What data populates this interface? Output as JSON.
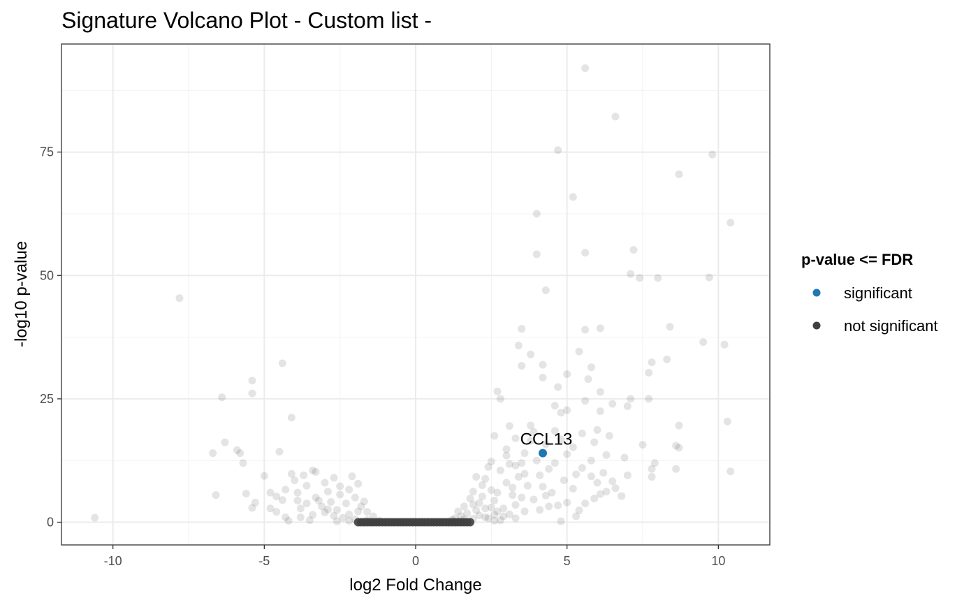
{
  "chart_data": {
    "type": "scatter",
    "title": "Signature Volcano Plot - Custom list -",
    "xlabel": "log2 Fold Change",
    "ylabel": "-log10 p-value",
    "xlim": [
      -11.7,
      11.7
    ],
    "ylim": [
      -4.6,
      96.9
    ],
    "x_ticks": [
      -10,
      -5,
      0,
      5,
      10
    ],
    "y_ticks": [
      0,
      25,
      50,
      75
    ],
    "grid": true,
    "legend": {
      "title": "p-value <= FDR",
      "placement": "right",
      "entries": [
        {
          "label": "significant",
          "color": "#1f78b4"
        },
        {
          "label": "not significant",
          "color": "#404040"
        }
      ]
    },
    "annotations": [
      {
        "text": "CCL13",
        "x": 4.2,
        "y": 14.0
      }
    ],
    "series": [
      {
        "name": "significant",
        "color": "#1f78b4",
        "points": [
          [
            4.2,
            14.0
          ]
        ]
      },
      {
        "name": "not significant",
        "color": "#404040",
        "points": [
          [
            5.6,
            92.0
          ],
          [
            6.6,
            82.2
          ],
          [
            4.7,
            75.4
          ],
          [
            9.8,
            74.5
          ],
          [
            8.7,
            70.5
          ],
          [
            5.2,
            65.9
          ],
          [
            4.0,
            62.5
          ],
          [
            10.4,
            60.7
          ],
          [
            7.2,
            55.2
          ],
          [
            4.0,
            54.3
          ],
          [
            5.6,
            54.6
          ],
          [
            7.1,
            50.3
          ],
          [
            7.4,
            49.5
          ],
          [
            8.0,
            49.5
          ],
          [
            9.7,
            49.6
          ],
          [
            4.3,
            47.0
          ],
          [
            -7.8,
            45.4
          ],
          [
            8.4,
            39.6
          ],
          [
            3.5,
            39.2
          ],
          [
            5.6,
            39.0
          ],
          [
            6.1,
            39.3
          ],
          [
            9.5,
            36.5
          ],
          [
            10.2,
            36.0
          ],
          [
            3.4,
            35.8
          ],
          [
            3.8,
            34.0
          ],
          [
            5.4,
            34.6
          ],
          [
            8.3,
            33.0
          ],
          [
            7.8,
            32.4
          ],
          [
            -4.4,
            32.2
          ],
          [
            3.5,
            31.7
          ],
          [
            4.2,
            31.9
          ],
          [
            5.8,
            31.4
          ],
          [
            7.7,
            30.3
          ],
          [
            5.0,
            30.0
          ],
          [
            4.2,
            29.3
          ],
          [
            5.7,
            29.0
          ],
          [
            -5.4,
            28.7
          ],
          [
            4.7,
            27.4
          ],
          [
            2.7,
            26.5
          ],
          [
            6.1,
            26.4
          ],
          [
            -5.4,
            26.1
          ],
          [
            -6.4,
            25.3
          ],
          [
            2.8,
            25.0
          ],
          [
            7.1,
            25.0
          ],
          [
            7.7,
            25.0
          ],
          [
            5.6,
            24.6
          ],
          [
            6.5,
            24.0
          ],
          [
            4.6,
            23.6
          ],
          [
            7.0,
            23.5
          ],
          [
            5.0,
            22.7
          ],
          [
            4.8,
            22.2
          ],
          [
            6.1,
            22.5
          ],
          [
            -4.1,
            21.2
          ],
          [
            10.3,
            20.4
          ],
          [
            3.1,
            19.5
          ],
          [
            3.8,
            19.6
          ],
          [
            8.7,
            19.6
          ],
          [
            6.0,
            18.7
          ],
          [
            4.6,
            18.5
          ],
          [
            5.5,
            18.0
          ],
          [
            2.6,
            17.5
          ],
          [
            6.4,
            17.5
          ],
          [
            3.3,
            17.0
          ],
          [
            -6.3,
            16.2
          ],
          [
            7.5,
            15.7
          ],
          [
            8.6,
            15.5
          ],
          [
            8.7,
            15.1
          ],
          [
            -5.9,
            14.6
          ],
          [
            -6.7,
            14.0
          ],
          [
            -5.8,
            14.0
          ],
          [
            -4.5,
            14.3
          ],
          [
            3.0,
            13.5
          ],
          [
            6.9,
            13.1
          ],
          [
            2.5,
            12.3
          ],
          [
            -5.7,
            12.0
          ],
          [
            7.9,
            12.0
          ],
          [
            3.3,
            11.5
          ],
          [
            7.8,
            10.8
          ],
          [
            8.6,
            10.8
          ],
          [
            10.4,
            10.3
          ],
          [
            -3.4,
            10.5
          ],
          [
            -4.1,
            9.8
          ],
          [
            -5.0,
            9.4
          ],
          [
            7.0,
            9.5
          ],
          [
            7.8,
            9.2
          ],
          [
            -6.6,
            5.5
          ],
          [
            6.8,
            5.3
          ],
          [
            -5.6,
            5.8
          ],
          [
            -5.3,
            4.0
          ],
          [
            -5.4,
            2.9
          ],
          [
            -4.8,
            2.8
          ],
          [
            -4.4,
            4.5
          ],
          [
            -3.8,
            1.0
          ],
          [
            -4.3,
            1.0
          ],
          [
            -10.6,
            0.9
          ],
          [
            4.8,
            0.2
          ],
          [
            5.3,
            1.2
          ],
          [
            5.9,
            4.8
          ],
          [
            6.3,
            6.2
          ],
          [
            6.5,
            8.3
          ],
          [
            5.2,
            6.8
          ],
          [
            4.9,
            8.5
          ],
          [
            4.5,
            6.0
          ],
          [
            4.1,
            9.5
          ],
          [
            3.7,
            7.4
          ],
          [
            3.9,
            4.6
          ],
          [
            4.4,
            3.2
          ],
          [
            3.6,
            2.2
          ],
          [
            5.6,
            3.8
          ],
          [
            6.0,
            8.0
          ],
          [
            5.5,
            11.0
          ],
          [
            5.0,
            13.8
          ],
          [
            4.6,
            12.0
          ],
          [
            4.0,
            12.5
          ],
          [
            3.4,
            9.2
          ],
          [
            3.0,
            8.0
          ],
          [
            2.8,
            10.5
          ],
          [
            2.5,
            6.5
          ],
          [
            2.3,
            8.8
          ],
          [
            2.6,
            4.4
          ],
          [
            3.2,
            5.5
          ],
          [
            3.6,
            14.0
          ],
          [
            3.8,
            16.5
          ],
          [
            4.8,
            16.8
          ],
          [
            5.8,
            12.5
          ],
          [
            6.2,
            10.0
          ],
          [
            6.6,
            6.9
          ],
          [
            5.8,
            9.3
          ],
          [
            5.3,
            9.7
          ],
          [
            4.4,
            10.8
          ],
          [
            3.3,
            3.5
          ],
          [
            2.9,
            2.8
          ],
          [
            3.5,
            12.0
          ],
          [
            4.2,
            7.2
          ],
          [
            5.2,
            15.2
          ],
          [
            4.3,
            15.8
          ],
          [
            3.9,
            18.3
          ],
          [
            5.9,
            16.2
          ],
          [
            6.3,
            13.6
          ],
          [
            4.1,
            2.5
          ],
          [
            4.7,
            3.4
          ],
          [
            5.4,
            2.4
          ],
          [
            3.1,
            11.8
          ],
          [
            2.2,
            7.5
          ],
          [
            2.4,
            11.2
          ],
          [
            4.3,
            5.4
          ],
          [
            5.0,
            4.0
          ],
          [
            3.0,
            14.8
          ],
          [
            3.6,
            9.8
          ],
          [
            6.1,
            5.7
          ],
          [
            2.0,
            9.2
          ],
          [
            1.9,
            6.2
          ],
          [
            2.1,
            3.9
          ],
          [
            2.3,
            2.8
          ],
          [
            1.8,
            4.8
          ],
          [
            1.6,
            3.2
          ],
          [
            1.4,
            2.2
          ],
          [
            1.7,
            1.8
          ],
          [
            2.5,
            3.0
          ],
          [
            2.2,
            5.2
          ],
          [
            1.9,
            3.6
          ],
          [
            2.7,
            2.2
          ],
          [
            2.6,
            1.5
          ],
          [
            2.9,
            1.2
          ],
          [
            2.4,
            0.8
          ],
          [
            2.1,
            1.4
          ],
          [
            1.5,
            1.2
          ],
          [
            1.3,
            0.8
          ],
          [
            2.0,
            2.4
          ],
          [
            2.8,
            0.4
          ],
          [
            3.1,
            1.6
          ],
          [
            3.3,
            0.8
          ],
          [
            3.5,
            5.0
          ],
          [
            3.2,
            7.0
          ],
          [
            2.7,
            6.0
          ],
          [
            -2.1,
            9.3
          ],
          [
            -2.5,
            7.3
          ],
          [
            -2.9,
            6.2
          ],
          [
            -3.3,
            5.0
          ],
          [
            -3.6,
            3.8
          ],
          [
            -3.1,
            3.2
          ],
          [
            -2.8,
            4.1
          ],
          [
            -2.6,
            2.5
          ],
          [
            -2.3,
            3.8
          ],
          [
            -2.0,
            5.0
          ],
          [
            -1.8,
            3.2
          ],
          [
            -1.6,
            2.1
          ],
          [
            -1.4,
            1.2
          ],
          [
            -2.2,
            1.6
          ],
          [
            -2.4,
            0.9
          ],
          [
            -2.7,
            1.3
          ],
          [
            -3.0,
            2.0
          ],
          [
            -3.4,
            1.5
          ],
          [
            -3.8,
            2.8
          ],
          [
            -3.9,
            6.0
          ],
          [
            -4.3,
            6.6
          ],
          [
            -4.6,
            5.2
          ],
          [
            -4.0,
            8.5
          ],
          [
            -3.7,
            9.5
          ],
          [
            -3.0,
            8.0
          ],
          [
            -2.7,
            9.0
          ],
          [
            -3.3,
            10.2
          ],
          [
            -3.6,
            7.4
          ],
          [
            -2.2,
            6.6
          ],
          [
            -1.9,
            7.8
          ],
          [
            -4.8,
            6.0
          ],
          [
            -3.2,
            4.4
          ],
          [
            -2.9,
            2.6
          ],
          [
            -2.5,
            5.6
          ],
          [
            -1.9,
            2.2
          ],
          [
            -1.7,
            4.2
          ],
          [
            -2.0,
            0.6
          ],
          [
            -1.6,
            0.4
          ],
          [
            -1.2,
            0.3
          ],
          [
            1.2,
            0.5
          ],
          [
            1.6,
            0.6
          ],
          [
            1.9,
            0.7
          ],
          [
            2.3,
            1.0
          ],
          [
            2.6,
            0.3
          ],
          [
            -2.2,
            0.3
          ],
          [
            -2.6,
            0.2
          ],
          [
            -3.5,
            0.4
          ],
          [
            -4.2,
            0.3
          ],
          [
            -4.6,
            2.1
          ],
          [
            -3.9,
            4.4
          ]
        ]
      }
    ]
  }
}
